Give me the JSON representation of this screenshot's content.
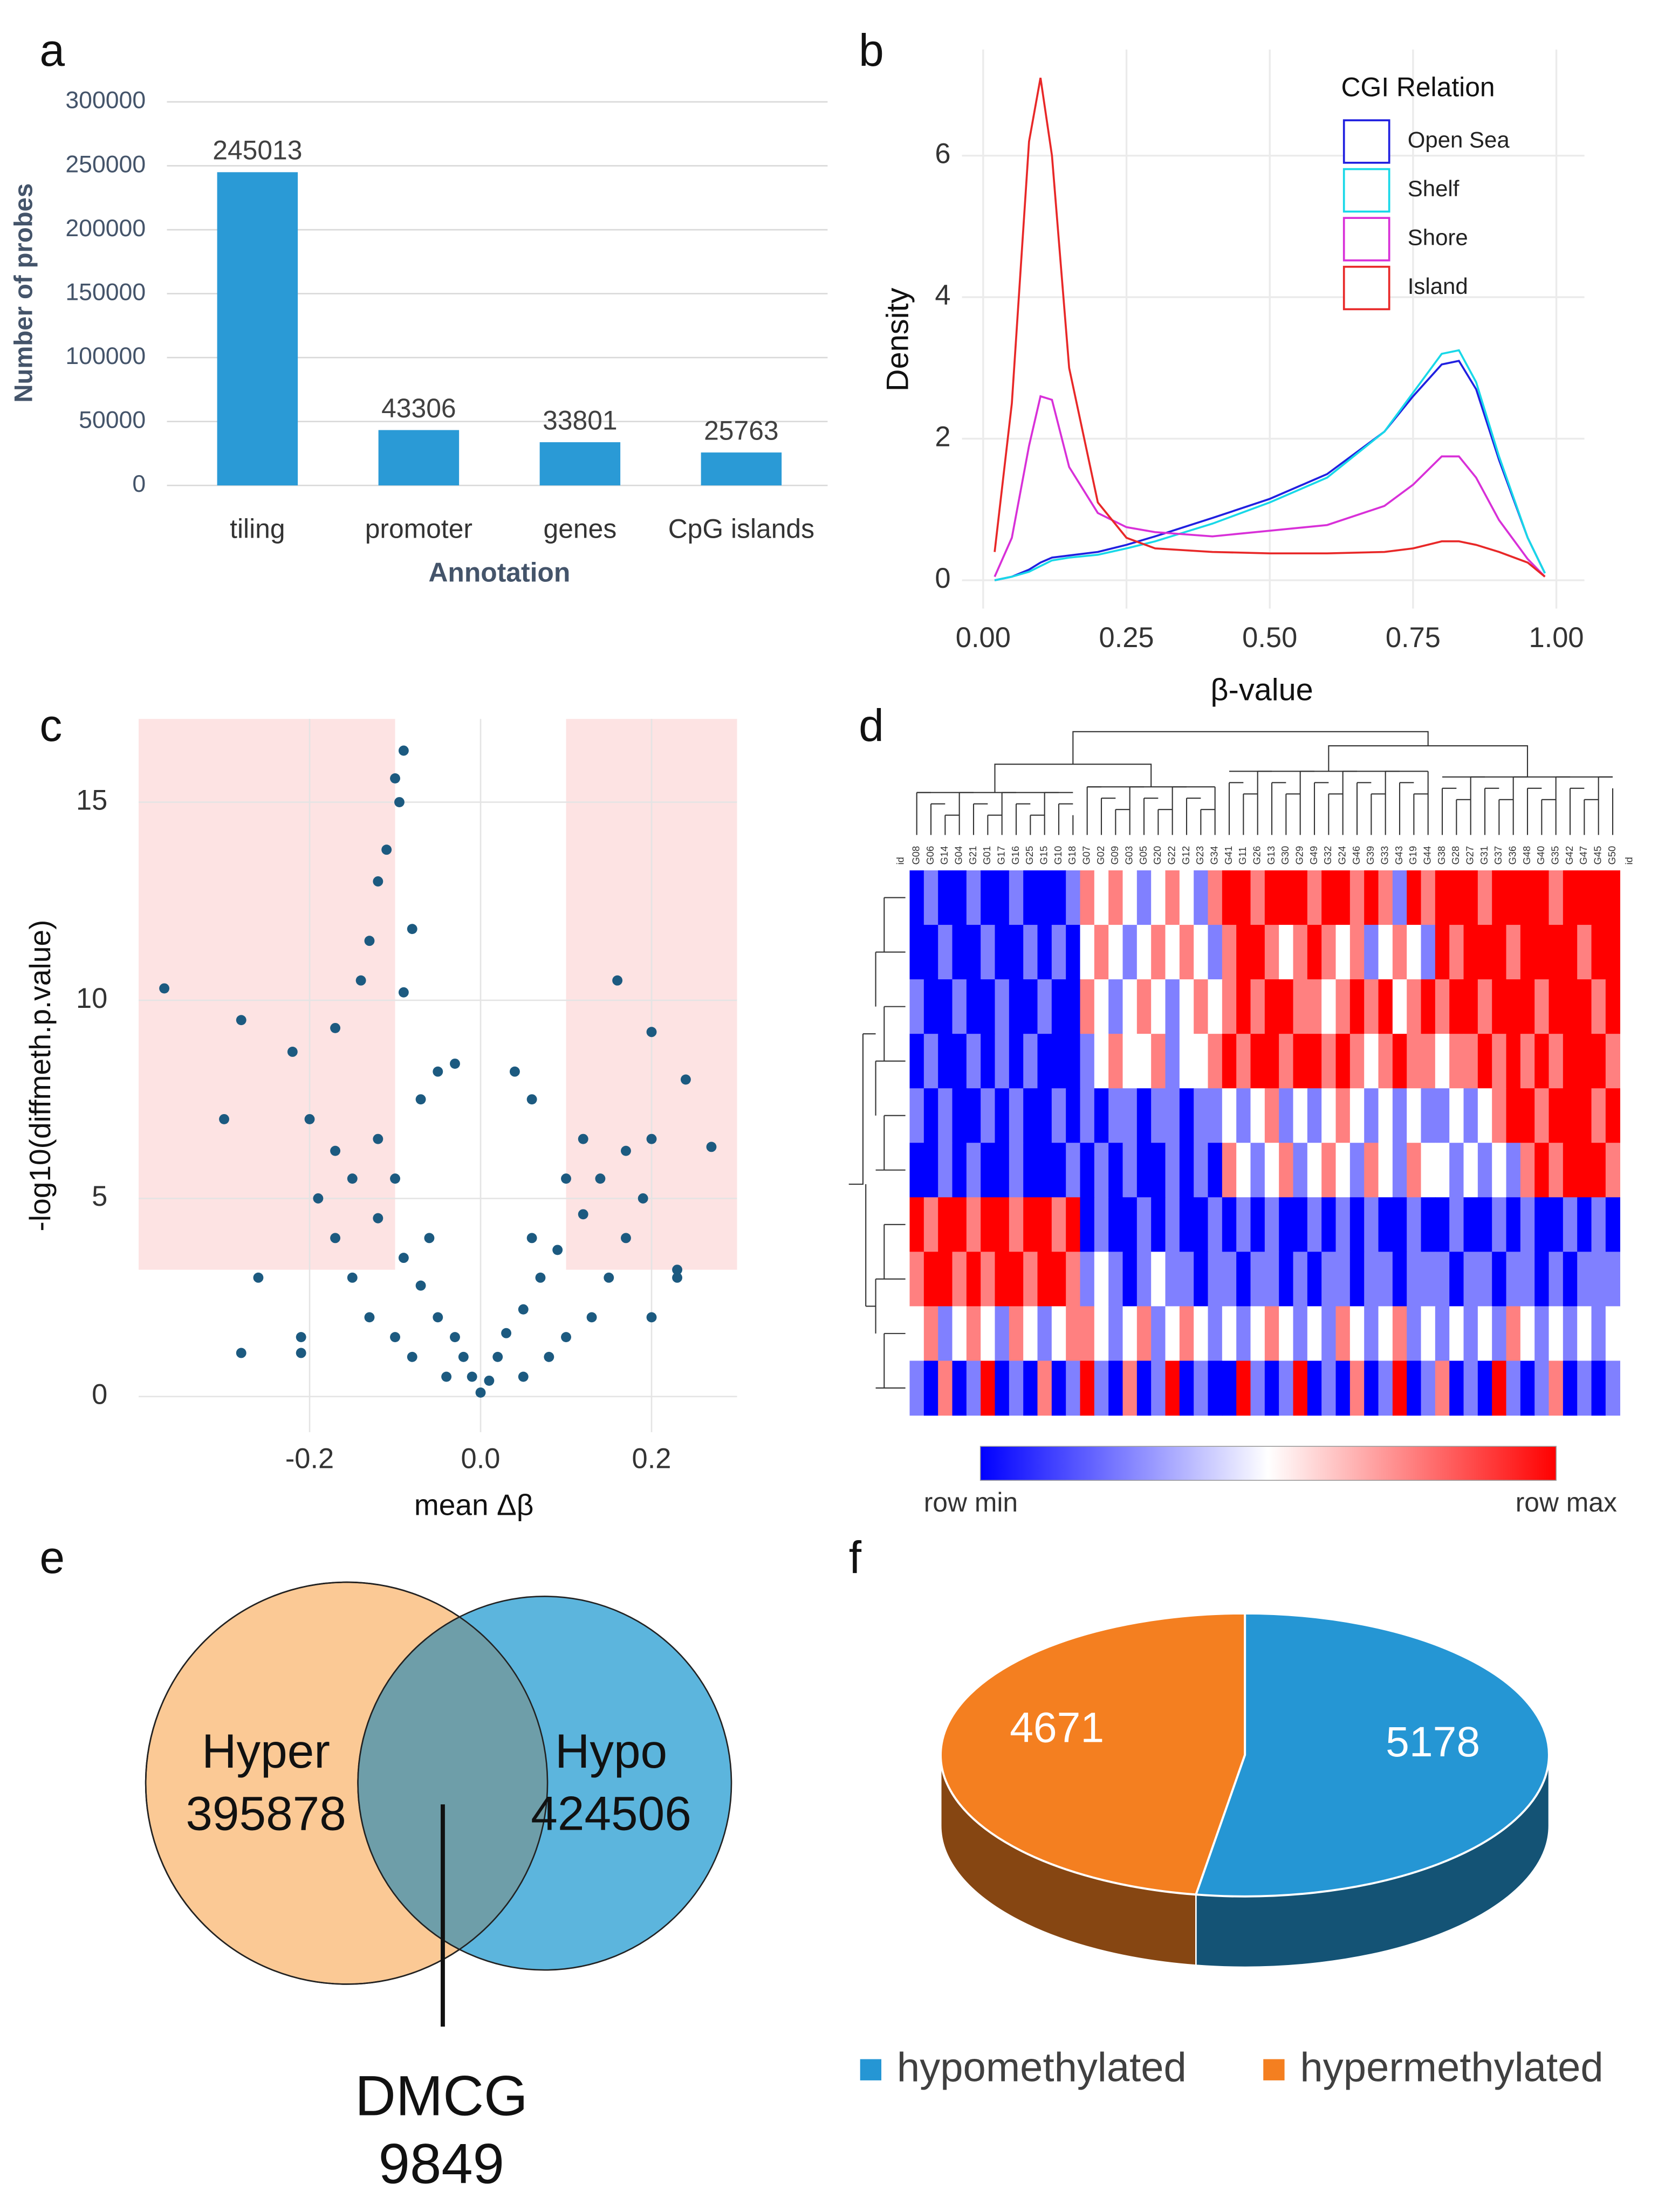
{
  "chart_data": [
    {
      "panel": "a",
      "type": "bar",
      "categories": [
        "tiling",
        "promoter",
        "genes",
        "CpG islands"
      ],
      "values": [
        245013,
        43306,
        33801,
        25763
      ],
      "color": "#2a9ad6",
      "ylim": [
        0,
        300000
      ],
      "yticks": [
        0,
        50000,
        100000,
        150000,
        200000,
        250000,
        300000
      ],
      "grid": true,
      "xlabel": "Annotation",
      "ylabel": "Number of probes"
    },
    {
      "panel": "b",
      "type": "line",
      "x": [
        0.02,
        0.05,
        0.08,
        0.1,
        0.12,
        0.15,
        0.2,
        0.25,
        0.3,
        0.4,
        0.5,
        0.6,
        0.7,
        0.75,
        0.8,
        0.83,
        0.86,
        0.9,
        0.95,
        0.98
      ],
      "series": [
        {
          "name": "Open Sea",
          "color": "#2020e0",
          "values": [
            0,
            0.05,
            0.15,
            0.25,
            0.32,
            0.35,
            0.4,
            0.5,
            0.62,
            0.88,
            1.15,
            1.5,
            2.1,
            2.6,
            3.05,
            3.1,
            2.7,
            1.7,
            0.6,
            0.1
          ]
        },
        {
          "name": "Shelf",
          "color": "#18d8e8",
          "values": [
            0,
            0.05,
            0.12,
            0.2,
            0.28,
            0.32,
            0.36,
            0.45,
            0.55,
            0.8,
            1.1,
            1.45,
            2.1,
            2.65,
            3.2,
            3.25,
            2.8,
            1.75,
            0.6,
            0.1
          ]
        },
        {
          "name": "Shore",
          "color": "#d830d8",
          "values": [
            0.05,
            0.6,
            1.9,
            2.6,
            2.55,
            1.6,
            0.95,
            0.75,
            0.68,
            0.62,
            0.7,
            0.78,
            1.05,
            1.35,
            1.75,
            1.75,
            1.45,
            0.85,
            0.3,
            0.05
          ]
        },
        {
          "name": "Island",
          "color": "#e82828",
          "values": [
            0.4,
            2.5,
            6.2,
            7.1,
            6.0,
            3.0,
            1.1,
            0.6,
            0.45,
            0.4,
            0.38,
            0.38,
            0.4,
            0.45,
            0.55,
            0.55,
            0.5,
            0.4,
            0.25,
            0.05
          ]
        }
      ],
      "xlim": [
        -0.037,
        1.049
      ],
      "xticks": [
        {
          "value": 0,
          "label": "0.00"
        },
        {
          "value": 0.25,
          "label": "0.25"
        },
        {
          "value": 0.5,
          "label": "0.50"
        },
        {
          "value": 0.75,
          "label": "0.75"
        },
        {
          "value": 1,
          "label": "1.00"
        }
      ],
      "ylim": [
        -0.4,
        7.5
      ],
      "yticks": [
        0,
        2,
        4,
        6
      ],
      "grid": true,
      "legend_title": "CGI Relation",
      "xlabel": "β-value",
      "ylabel": "Density"
    },
    {
      "panel": "c",
      "type": "scatter",
      "color": "#1c5a80",
      "x": [
        0,
        -0.01,
        0.01,
        -0.02,
        0.02,
        -0.03,
        0.03,
        -0.05,
        0.05,
        -0.07,
        0.07,
        -0.09,
        0.09,
        -0.12,
        0.12,
        -0.15,
        0.14,
        -0.17,
        0.17,
        -0.2,
        0.2,
        -0.04,
        0.05,
        -0.08,
        0.08,
        -0.1,
        0.1,
        -0.13,
        0.13,
        -0.15,
        0.15,
        -0.17,
        0.17,
        -0.19,
        0.19,
        -0.06,
        0.06,
        -0.1,
        0.1,
        -0.12,
        0.12,
        -0.21,
        0.2,
        -0.26,
        0.23,
        -0.37,
        -0.28,
        -0.21,
        -0.28,
        -0.3,
        -0.22,
        -0.17,
        -0.14,
        -0.09,
        -0.1,
        -0.095,
        -0.11,
        -0.12,
        -0.08,
        -0.13,
        -0.09,
        -0.05,
        -0.03,
        0.16,
        0.2,
        0.24,
        0.27,
        0.23,
        0.04,
        0.06,
        -0.07
      ],
      "y": [
        0.1,
        0.5,
        0.4,
        1,
        1,
        1.5,
        1.6,
        2,
        2.2,
        2.8,
        3,
        3.5,
        3.7,
        4.5,
        4.6,
        5.5,
        5.5,
        6.2,
        6.2,
        7,
        6.5,
        0.5,
        0.5,
        1,
        1,
        1.5,
        1.5,
        2,
        2,
        3,
        3,
        4,
        4,
        5,
        5,
        4,
        4,
        5.5,
        5.5,
        6.5,
        6.5,
        1.5,
        2,
        3,
        3,
        10.3,
        1.1,
        1.1,
        9.5,
        7,
        8.7,
        9.3,
        10.5,
        16.3,
        15.6,
        15,
        13.8,
        13,
        11.8,
        11.5,
        10.2,
        8.2,
        8.4,
        10.5,
        9.2,
        8,
        6.3,
        3.2,
        8.2,
        7.5,
        7.5
      ],
      "thresholds": {
        "x": [
          -0.1,
          0.1
        ],
        "y": 3.2,
        "color": "#fde3e3"
      },
      "xlim": [
        -0.4,
        0.3
      ],
      "xticks": [
        -0.2,
        {
          "value": 0,
          "label": "0.0"
        },
        0.2
      ],
      "ylim": [
        -0.9,
        17.1
      ],
      "yticks": [
        0,
        5,
        10,
        15
      ],
      "grid": true,
      "xlabel": "mean Δβ",
      "ylabel": "-log10(diffmeth.p.value)"
    },
    {
      "panel": "d",
      "type": "heatmap",
      "id_labels": [
        "id",
        "id"
      ],
      "columns": [
        "G08",
        "G06",
        "G14",
        "G04",
        "G21",
        "G01",
        "G17",
        "G16",
        "G25",
        "G15",
        "G10",
        "G18",
        "G07",
        "G02",
        "G09",
        "G03",
        "G05",
        "G20",
        "G22",
        "G12",
        "G23",
        "G34",
        "G41",
        "G11",
        "G26",
        "G13",
        "G30",
        "G29",
        "G49",
        "G32",
        "G24",
        "G46",
        "G39",
        "G33",
        "G43",
        "G19",
        "G44",
        "G38",
        "G28",
        "G27",
        "G31",
        "G37",
        "G36",
        "G48",
        "G40",
        "G35",
        "G42",
        "G47",
        "G45",
        "G50"
      ],
      "values": [
        [
          -2,
          -1,
          -2,
          -2,
          -1,
          -2,
          -2,
          -1,
          -2,
          -2,
          -2,
          -1,
          1,
          0,
          1,
          0,
          -1,
          0,
          1,
          0,
          -1,
          1,
          2,
          2,
          1,
          2,
          2,
          2,
          1,
          2,
          2,
          1,
          2,
          1,
          -1,
          2,
          1,
          2,
          2,
          2,
          1,
          2,
          2,
          2,
          2,
          1,
          2,
          2,
          2,
          2
        ],
        [
          -2,
          -2,
          -1,
          -2,
          -2,
          -1,
          -2,
          -2,
          -1,
          -2,
          -1,
          -2,
          0,
          1,
          0,
          -1,
          0,
          1,
          0,
          1,
          0,
          -1,
          1,
          2,
          2,
          1,
          0,
          1,
          2,
          1,
          0,
          1,
          -1,
          0,
          1,
          0,
          -1,
          2,
          1,
          2,
          2,
          2,
          1,
          2,
          2,
          2,
          2,
          1,
          2,
          2
        ],
        [
          -1,
          -2,
          -2,
          -1,
          -2,
          -2,
          -1,
          -2,
          -2,
          -1,
          -2,
          -2,
          1,
          0,
          -1,
          0,
          1,
          0,
          -1,
          0,
          1,
          0,
          1,
          2,
          1,
          2,
          2,
          1,
          1,
          0,
          1,
          2,
          1,
          2,
          0,
          1,
          2,
          1,
          2,
          2,
          1,
          2,
          2,
          2,
          1,
          2,
          2,
          2,
          1,
          2
        ],
        [
          -2,
          -1,
          -2,
          -2,
          -1,
          -2,
          -1,
          -2,
          -1,
          -2,
          -2,
          -2,
          -1,
          0,
          1,
          0,
          0,
          1,
          -1,
          0,
          0,
          1,
          2,
          1,
          2,
          2,
          1,
          2,
          2,
          1,
          2,
          1,
          0,
          1,
          2,
          1,
          1,
          0,
          1,
          1,
          2,
          1,
          2,
          1,
          2,
          1,
          2,
          2,
          2,
          1
        ],
        [
          -1,
          -2,
          -1,
          -2,
          -2,
          -1,
          -2,
          -1,
          -2,
          -2,
          -1,
          -2,
          -1,
          -2,
          -1,
          -1,
          -2,
          -1,
          -1,
          -2,
          -1,
          -1,
          0,
          -1,
          0,
          1,
          -1,
          0,
          -1,
          0,
          1,
          0,
          -1,
          0,
          -1,
          0,
          -1,
          -1,
          0,
          -1,
          0,
          1,
          2,
          2,
          1,
          2,
          2,
          2,
          1,
          2
        ],
        [
          -2,
          -2,
          -1,
          -2,
          -1,
          -2,
          -2,
          -1,
          -2,
          -2,
          -2,
          -1,
          -2,
          -1,
          -2,
          -1,
          -2,
          -2,
          -1,
          -2,
          -1,
          -2,
          1,
          0,
          -1,
          0,
          1,
          -1,
          0,
          1,
          0,
          -1,
          1,
          0,
          -1,
          1,
          0,
          0,
          -1,
          0,
          -1,
          0,
          -1,
          1,
          2,
          1,
          2,
          2,
          2,
          1
        ],
        [
          2,
          1,
          2,
          2,
          1,
          2,
          2,
          1,
          2,
          2,
          1,
          2,
          -2,
          -1,
          -2,
          -2,
          -1,
          -2,
          -1,
          -2,
          -2,
          -1,
          -2,
          -1,
          -2,
          -1,
          -2,
          -2,
          -1,
          -2,
          -1,
          -2,
          -1,
          -2,
          -2,
          -1,
          -2,
          -2,
          -1,
          -2,
          -2,
          -1,
          -2,
          -1,
          -2,
          -2,
          -1,
          -2,
          -1,
          -2
        ],
        [
          1,
          2,
          2,
          1,
          2,
          1,
          2,
          2,
          1,
          2,
          2,
          1,
          -1,
          0,
          -1,
          -2,
          -1,
          0,
          -1,
          -1,
          -2,
          -1,
          -1,
          -2,
          -1,
          -1,
          -2,
          -1,
          -2,
          -1,
          -1,
          -2,
          -1,
          -1,
          -2,
          -1,
          -1,
          -1,
          -2,
          -1,
          -1,
          -2,
          -1,
          -1,
          -2,
          -1,
          -2,
          -1,
          -1,
          -1
        ],
        [
          0,
          1,
          -1,
          0,
          1,
          0,
          -1,
          1,
          0,
          -1,
          0,
          1,
          1,
          0,
          -1,
          0,
          1,
          -1,
          0,
          1,
          0,
          -1,
          0,
          -1,
          0,
          1,
          0,
          -1,
          0,
          -1,
          1,
          0,
          -1,
          0,
          1,
          -1,
          0,
          -1,
          0,
          -1,
          0,
          -1,
          1,
          0,
          -1,
          0,
          -1,
          0,
          -1,
          0
        ],
        [
          -1,
          -2,
          1,
          -2,
          -1,
          2,
          -2,
          -1,
          -2,
          1,
          -2,
          -1,
          2,
          -1,
          -2,
          1,
          -2,
          -1,
          2,
          -2,
          -1,
          -2,
          -2,
          2,
          -1,
          -2,
          -1,
          2,
          -2,
          -1,
          -2,
          1,
          -2,
          -1,
          2,
          -2,
          -1,
          1,
          -2,
          -1,
          -2,
          2,
          -1,
          -2,
          -1,
          1,
          -2,
          -1,
          -2,
          -1
        ]
      ],
      "zlim": [
        -2,
        2
      ],
      "colorscale": [
        "#0000ff",
        "#ffffff",
        "#ff0000"
      ],
      "scale_labels": [
        "row min",
        "row max"
      ]
    },
    {
      "panel": "e",
      "type": "venn",
      "sets": [
        {
          "name": "Hyper",
          "value": 395878,
          "color": "#fbc995"
        },
        {
          "name": "Hypo",
          "value": 424506,
          "color": "#5cb5dd"
        }
      ],
      "intersection": {
        "name": "DMCG",
        "value": 9849,
        "color": "#6e9ea9"
      }
    },
    {
      "panel": "f",
      "type": "pie",
      "categories": [
        "hypomethylated",
        "hypermethylated"
      ],
      "values": [
        5178,
        4671
      ],
      "colors": [
        "#2596d4",
        "#f47f20"
      ]
    }
  ]
}
